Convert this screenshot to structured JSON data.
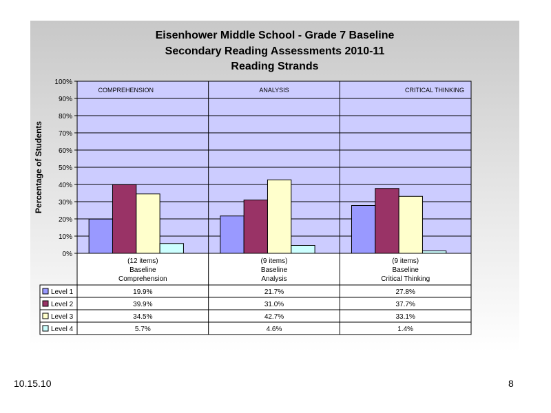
{
  "footer": {
    "date": "10.15.10",
    "page_number": "8"
  },
  "chart_data": {
    "type": "bar",
    "title_lines": [
      "Eisenhower Middle School - Grade 7 Baseline",
      "Secondary Reading Assessments 2010-11",
      "Reading Strands"
    ],
    "ylabel": "Percentage of Students",
    "ylim": [
      0,
      100
    ],
    "yticks": [
      "0%",
      "10%",
      "20%",
      "30%",
      "40%",
      "50%",
      "60%",
      "70%",
      "80%",
      "90%",
      "100%"
    ],
    "grid": true,
    "section_labels": [
      "COMPREHENSION",
      "ANALYSIS",
      "CRITICAL THINKING"
    ],
    "categories": [
      [
        "(12 items)",
        "Baseline",
        "Comprehension"
      ],
      [
        "(9 items)",
        "Baseline",
        "Analysis"
      ],
      [
        "(9 items)",
        "Baseline",
        "Critical Thinking"
      ]
    ],
    "series": [
      {
        "name": "Level 1",
        "color": "#9999ff",
        "values": [
          19.9,
          21.7,
          27.8
        ],
        "labels": [
          "19.9%",
          "21.7%",
          "27.8%"
        ]
      },
      {
        "name": "Level 2",
        "color": "#993366",
        "values": [
          39.9,
          31.0,
          37.7
        ],
        "labels": [
          "39.9%",
          "31.0%",
          "37.7%"
        ]
      },
      {
        "name": "Level 3",
        "color": "#ffffcc",
        "values": [
          34.5,
          42.7,
          33.1
        ],
        "labels": [
          "34.5%",
          "42.7%",
          "33.1%"
        ]
      },
      {
        "name": "Level 4",
        "color": "#ccffff",
        "values": [
          5.7,
          4.6,
          1.4
        ],
        "labels": [
          "5.7%",
          "4.6%",
          "1.4%"
        ]
      }
    ],
    "plot_background": "#ccccff",
    "legend": "data-table"
  }
}
